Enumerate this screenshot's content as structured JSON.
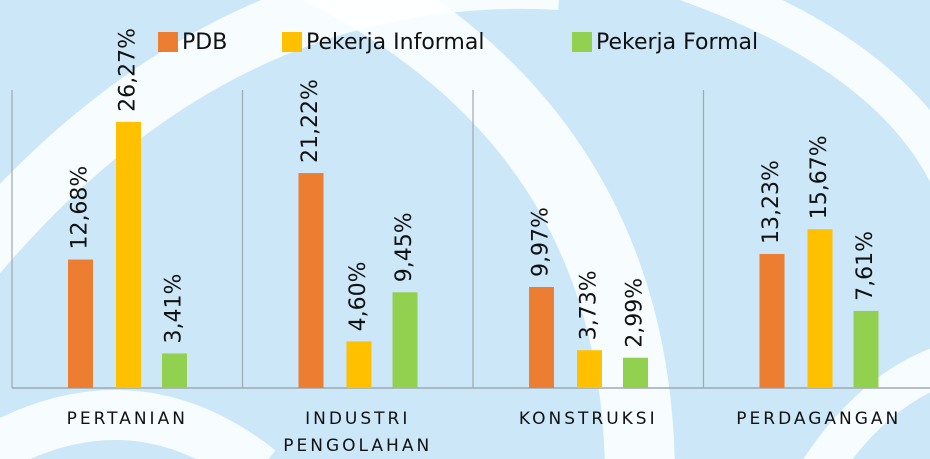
{
  "chart_data": {
    "type": "bar",
    "categories": [
      "PERTANIAN",
      "INDUSTRI PENGOLAHAN",
      "KONSTRUKSI",
      "PERDAGANGAN"
    ],
    "series": [
      {
        "name": "PDB",
        "color": "#ed7d31",
        "values": [
          12.68,
          21.22,
          9.97,
          13.23
        ],
        "value_labels": [
          "12,68%",
          "21,22%",
          "9,97%",
          "13,23%"
        ]
      },
      {
        "name": "Pekerja Informal",
        "color": "#ffc000",
        "values": [
          26.27,
          4.6,
          3.73,
          15.67
        ],
        "value_labels": [
          "26,27%",
          "4,60%",
          "3,73%",
          "15,67%"
        ]
      },
      {
        "name": "Pekerja Formal",
        "color": "#92d050",
        "values": [
          3.41,
          9.45,
          2.99,
          7.61
        ],
        "value_labels": [
          "3,41%",
          "9,45%",
          "2,99%",
          "7,61%"
        ]
      }
    ],
    "legend": "top"
  }
}
